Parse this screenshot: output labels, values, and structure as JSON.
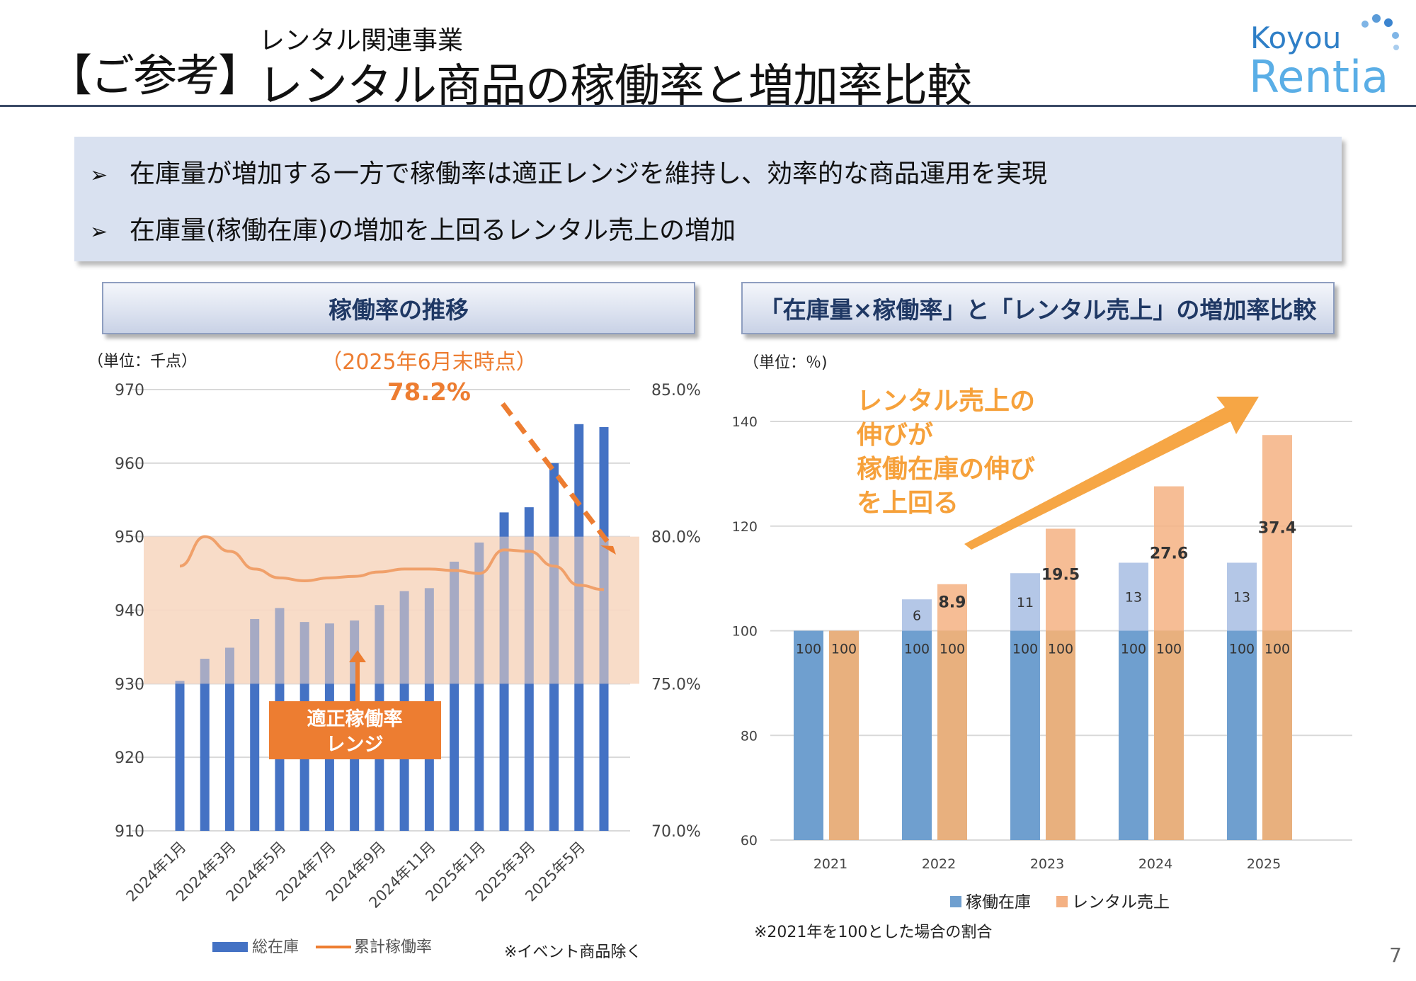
{
  "header": {
    "prefix": "【ご参考】",
    "subtitle": "レンタル関連事業",
    "title": "レンタル商品の稼働率と増加率比較",
    "logo_line1": "Koyou",
    "logo_line2": "Rentia"
  },
  "summary": {
    "bullet_icon": "arrow-bullet-icon",
    "items": [
      "在庫量が増加する一方で稼働率は適正レンジを維持し、効率的な商品運用を実現",
      "在庫量(稼働在庫)の増加を上回るレンタル売上の増加"
    ]
  },
  "left_panel": {
    "heading": "稼働率の推移",
    "unit": "（単位：千点）",
    "callout_date": "（2025年6月末時点）",
    "callout_value": "78.2%",
    "range_label_line1": "適正稼働率",
    "range_label_line2": "レンジ",
    "note": "※イベント商品除く"
  },
  "right_panel": {
    "heading": "「在庫量×稼働率」と「レンタル売上」の増加率比較",
    "unit": "（単位：％)",
    "callout_lines": [
      "レンタル売上の",
      "伸びが",
      "稼働在庫の伸び",
      "を上回る"
    ],
    "note": "※2021年を100とした場合の割合"
  },
  "colors": {
    "bar_blue": "#4472c4",
    "line_orange": "#ed7d31",
    "range_fill": "#f8d9c4",
    "right_blue": "#6f9fcf",
    "right_blue_light": "#b4c7e7",
    "right_orange": "#f4b183",
    "right_orange_dark": "#e8b07e",
    "callout_orange": "#f6a13b",
    "heading_navy": "#1f3864"
  },
  "chart_data": [
    {
      "type": "bar",
      "categories": [
        "2024年1月",
        "2024年2月",
        "2024年3月",
        "2024年4月",
        "2024年5月",
        "2024年6月",
        "2024年7月",
        "2024年8月",
        "2024年9月",
        "2024年10月",
        "2024年11月",
        "2024年12月",
        "2025年1月",
        "2025年2月",
        "2025年3月",
        "2025年4月",
        "2025年5月",
        "2025年6月"
      ],
      "x_tick_labels": [
        "2024年1月",
        "2024年3月",
        "2024年5月",
        "2024年7月",
        "2024年9月",
        "2024年11月",
        "2025年1月",
        "2025年3月",
        "2025年5月"
      ],
      "series": [
        {
          "name": "総在庫",
          "axis": "left",
          "kind": "bar",
          "values": [
            930.4,
            933.4,
            934.9,
            938.8,
            940.3,
            938.4,
            938.2,
            938.6,
            940.7,
            942.6,
            943.0,
            946.6,
            949.2,
            953.3,
            954.0,
            960.0,
            965.3,
            964.9
          ]
        },
        {
          "name": "累計稼働率",
          "axis": "right",
          "kind": "line",
          "values": [
            79.0,
            80.0,
            79.5,
            78.9,
            78.6,
            78.5,
            78.6,
            78.65,
            78.8,
            78.9,
            78.9,
            78.85,
            78.75,
            79.55,
            79.5,
            79.0,
            78.35,
            78.2
          ]
        }
      ],
      "ylim": [
        910,
        970
      ],
      "y_ticks": [
        910,
        920,
        930,
        940,
        950,
        960,
        970
      ],
      "y2lim": [
        70.0,
        85.0
      ],
      "y2_tick_labels": [
        "70.0%",
        "75.0%",
        "80.0%",
        "85.0%"
      ],
      "shaded_band_y2": [
        75.0,
        80.0
      ],
      "legend": "bottom",
      "grid": true
    },
    {
      "type": "bar",
      "categories": [
        "2021",
        "2022",
        "2023",
        "2024",
        "2025"
      ],
      "series": [
        {
          "name": "稼働在庫",
          "base": [
            100,
            100,
            100,
            100,
            100
          ],
          "increase": [
            0,
            6,
            11,
            13,
            13
          ]
        },
        {
          "name": "レンタル売上",
          "base": [
            100,
            100,
            100,
            100,
            100
          ],
          "increase": [
            0,
            8.9,
            19.5,
            27.6,
            37.4
          ]
        }
      ],
      "base_labels": [
        "100",
        "100",
        "100",
        "100",
        "100"
      ],
      "ylim": [
        60,
        140
      ],
      "y_ticks": [
        60,
        80,
        100,
        120,
        140
      ],
      "legend": "bottom",
      "grid": true
    }
  ]
}
